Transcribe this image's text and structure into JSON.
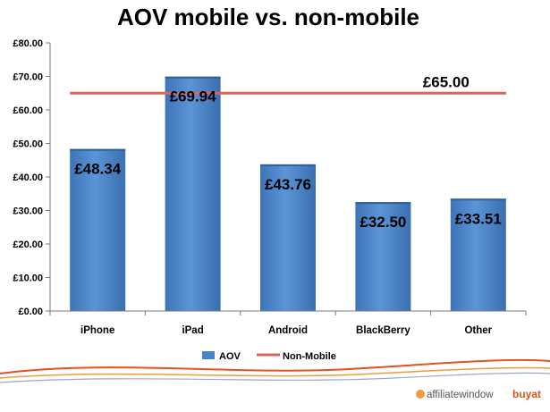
{
  "chart_data": {
    "type": "bar",
    "title": "AOV mobile vs. non-mobile",
    "categories": [
      "iPhone",
      "iPad",
      "Android",
      "BlackBerry",
      "Other"
    ],
    "series": [
      {
        "name": "AOV",
        "type": "bar",
        "values": [
          48.34,
          69.94,
          43.76,
          32.5,
          33.51
        ],
        "color": "#4a84c8"
      }
    ],
    "reference_line": {
      "name": "Non-Mobile",
      "value": 65.0,
      "label": "£65.00",
      "color": "#e0605a"
    },
    "data_labels": [
      "£48.34",
      "£69.94",
      "£43.76",
      "£32.50",
      "£33.51"
    ],
    "ylim": [
      0,
      80
    ],
    "yticks": [
      "£0.00",
      "£10.00",
      "£20.00",
      "£30.00",
      "£40.00",
      "£50.00",
      "£60.00",
      "£70.00",
      "£80.00"
    ],
    "grid": false,
    "legend": {
      "position": "bottom",
      "entries": [
        "AOV",
        "Non-Mobile"
      ]
    }
  },
  "footer": {
    "brand_left": "affiliatewindow",
    "brand_right": "buyat",
    "accent_colors": [
      "#e5511a",
      "#f39a3a",
      "#9aa9c6"
    ]
  }
}
